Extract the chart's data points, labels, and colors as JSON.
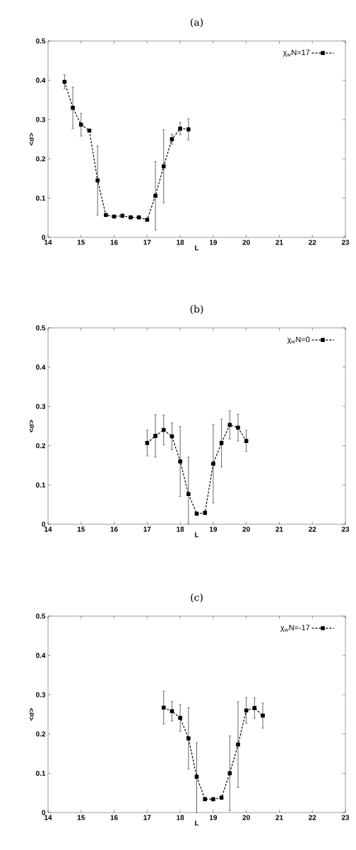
{
  "chart_data": [
    {
      "type": "line",
      "title": "(a)",
      "xlabel": "L",
      "ylabel": "<σ>",
      "legend": "top right",
      "marker": "square",
      "line_style": "dashed",
      "x": [
        14.5,
        14.75,
        15,
        15.25,
        15.5,
        15.75,
        16,
        16.25,
        16.5,
        16.75,
        17,
        17.25,
        17.5,
        17.75,
        18,
        18.25
      ],
      "series": [
        {
          "name": "χ$_{w}$N=17",
          "color": "#000000",
          "values": [
            0.396,
            0.33,
            0.287,
            0.272,
            0.145,
            0.057,
            0.053,
            0.055,
            0.051,
            0.051,
            0.045,
            0.106,
            0.181,
            0.25,
            0.277,
            0.275
          ],
          "errors": [
            0.018,
            0.053,
            0.029,
            null,
            0.088,
            null,
            null,
            null,
            null,
            null,
            null,
            0.087,
            0.093,
            0.013,
            0.016,
            0.027
          ]
        }
      ],
      "xlim": [
        14,
        23
      ],
      "ylim": [
        0,
        0.5
      ],
      "xticks": [
        14,
        15,
        16,
        17,
        18,
        19,
        20,
        21,
        22,
        23
      ],
      "yticks": [
        0,
        0.1,
        0.2,
        0.3,
        0.4,
        0.5
      ]
    },
    {
      "type": "line",
      "title": "(b)",
      "xlabel": "L",
      "ylabel": "<σ>",
      "legend": "top right",
      "marker": "square",
      "line_style": "dashed",
      "x": [
        17,
        17.25,
        17.5,
        17.75,
        18,
        18.25,
        18.5,
        18.75,
        19,
        19.25,
        19.5,
        19.75,
        20
      ],
      "series": [
        {
          "name": "χ$_{w}$N=0",
          "color": "#000000",
          "values": [
            0.207,
            0.225,
            0.24,
            0.224,
            0.16,
            0.077,
            0.027,
            0.029,
            0.154,
            0.207,
            0.253,
            0.246,
            0.212
          ],
          "errors": [
            0.033,
            0.054,
            0.038,
            0.034,
            0.089,
            [
              0,
              0.171
            ],
            null,
            null,
            0.1,
            0.061,
            0.036,
            0.034,
            0.027
          ]
        }
      ],
      "xlim": [
        14,
        23
      ],
      "ylim": [
        0,
        0.5
      ],
      "xticks": [
        14,
        15,
        16,
        17,
        18,
        19,
        20,
        21,
        22,
        23
      ],
      "yticks": [
        0,
        0.1,
        0.2,
        0.3,
        0.4,
        0.5
      ]
    },
    {
      "type": "line",
      "title": "(c)",
      "xlabel": "L",
      "ylabel": "<σ>",
      "legend": "top right",
      "marker": "square",
      "line_style": "dashed",
      "x": [
        17.5,
        17.75,
        18,
        18.25,
        18.5,
        18.75,
        19,
        19.25,
        19.5,
        19.75,
        20,
        20.25,
        20.5
      ],
      "series": [
        {
          "name": "χ$_{w}$N=-17",
          "color": "#000000",
          "values": [
            0.267,
            0.258,
            0.241,
            0.189,
            0.091,
            0.034,
            0.034,
            0.038,
            0.1,
            0.173,
            0.26,
            0.266,
            0.247
          ],
          "errors": [
            0.042,
            0.025,
            0.034,
            0.078,
            [
              0,
              0.178
            ],
            null,
            null,
            null,
            0.095,
            0.109,
            0.033,
            0.026,
            0.032
          ]
        }
      ],
      "xlim": [
        14,
        23
      ],
      "ylim": [
        0,
        0.5
      ],
      "xticks": [
        14,
        15,
        16,
        17,
        18,
        19,
        20,
        21,
        22,
        23
      ],
      "yticks": [
        0,
        0.1,
        0.2,
        0.3,
        0.4,
        0.5
      ]
    }
  ]
}
